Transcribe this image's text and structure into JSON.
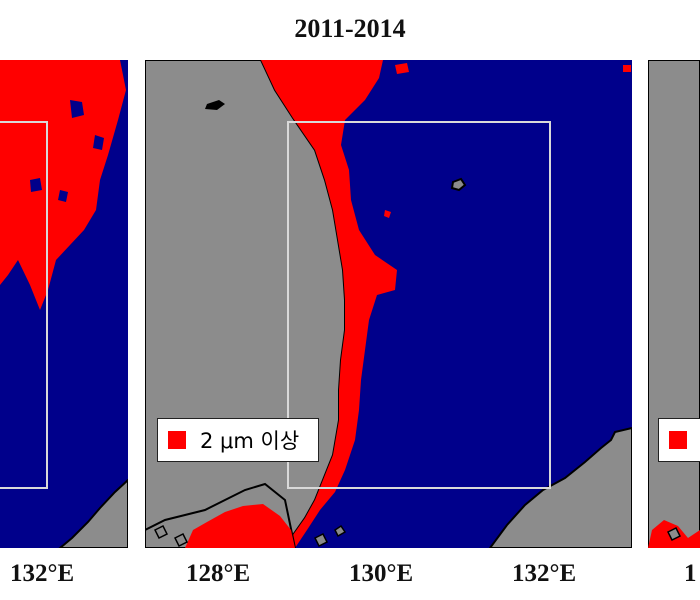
{
  "title": "2011-2014",
  "colors": {
    "sea": "#00008b",
    "land": "#8c8c8c",
    "signal": "#ff0000",
    "box": "#d9d9d9",
    "coast": "#000000"
  },
  "legend": {
    "label": "2 μm 이상",
    "swatch_color": "#ff0000"
  },
  "axis": {
    "left_panel_ticks": [
      "132°E"
    ],
    "center_panel_ticks": [
      "128°E",
      "130°E",
      "132°E"
    ],
    "right_panel_ticks_partial": [
      "1"
    ]
  }
}
